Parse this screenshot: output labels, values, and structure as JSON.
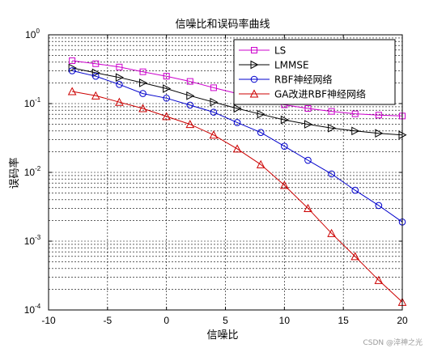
{
  "watermark": "CSDN @淬神之光",
  "chart_data": {
    "type": "line",
    "title": "信噪比和误码率曲线",
    "xlabel": "信噪比",
    "ylabel": "误码率",
    "xlim": [
      -10,
      20
    ],
    "ylim": [
      0.0001,
      1
    ],
    "yscale": "log",
    "grid": true,
    "legend_position": "top-right",
    "x_ticks": [
      -10,
      -5,
      0,
      5,
      10,
      15,
      20
    ],
    "y_ticks": [
      {
        "base": "10",
        "exp": "-4",
        "value": 0.0001
      },
      {
        "base": "10",
        "exp": "-3",
        "value": 0.001
      },
      {
        "base": "10",
        "exp": "-2",
        "value": 0.01
      },
      {
        "base": "10",
        "exp": "-1",
        "value": 0.1
      },
      {
        "base": "10",
        "exp": "0",
        "value": 1
      }
    ],
    "x": [
      -8,
      -6,
      -4,
      -2,
      0,
      2,
      4,
      6,
      8,
      10,
      12,
      14,
      16,
      18,
      20
    ],
    "series": [
      {
        "name": "LS",
        "color": "#cc00cc",
        "marker": "square",
        "values": [
          0.42,
          0.38,
          0.34,
          0.29,
          0.25,
          0.21,
          0.17,
          0.14,
          0.115,
          0.096,
          0.085,
          0.077,
          0.071,
          0.068,
          0.066
        ]
      },
      {
        "name": "LMMSE",
        "color": "#000000",
        "marker": "triangle-right",
        "values": [
          0.33,
          0.28,
          0.24,
          0.2,
          0.165,
          0.13,
          0.105,
          0.085,
          0.07,
          0.058,
          0.05,
          0.044,
          0.04,
          0.037,
          0.035
        ]
      },
      {
        "name": "RBF神经网络",
        "color": "#0000cc",
        "marker": "circle",
        "values": [
          0.3,
          0.25,
          0.19,
          0.14,
          0.12,
          0.095,
          0.075,
          0.053,
          0.038,
          0.024,
          0.015,
          0.0095,
          0.0055,
          0.0033,
          0.0019
        ]
      },
      {
        "name": "GA改进RBF神经网络",
        "color": "#cc0000",
        "marker": "triangle-up",
        "values": [
          0.15,
          0.13,
          0.105,
          0.085,
          0.065,
          0.05,
          0.035,
          0.022,
          0.013,
          0.0065,
          0.003,
          0.0013,
          0.0006,
          0.00027,
          0.00013
        ]
      }
    ]
  }
}
